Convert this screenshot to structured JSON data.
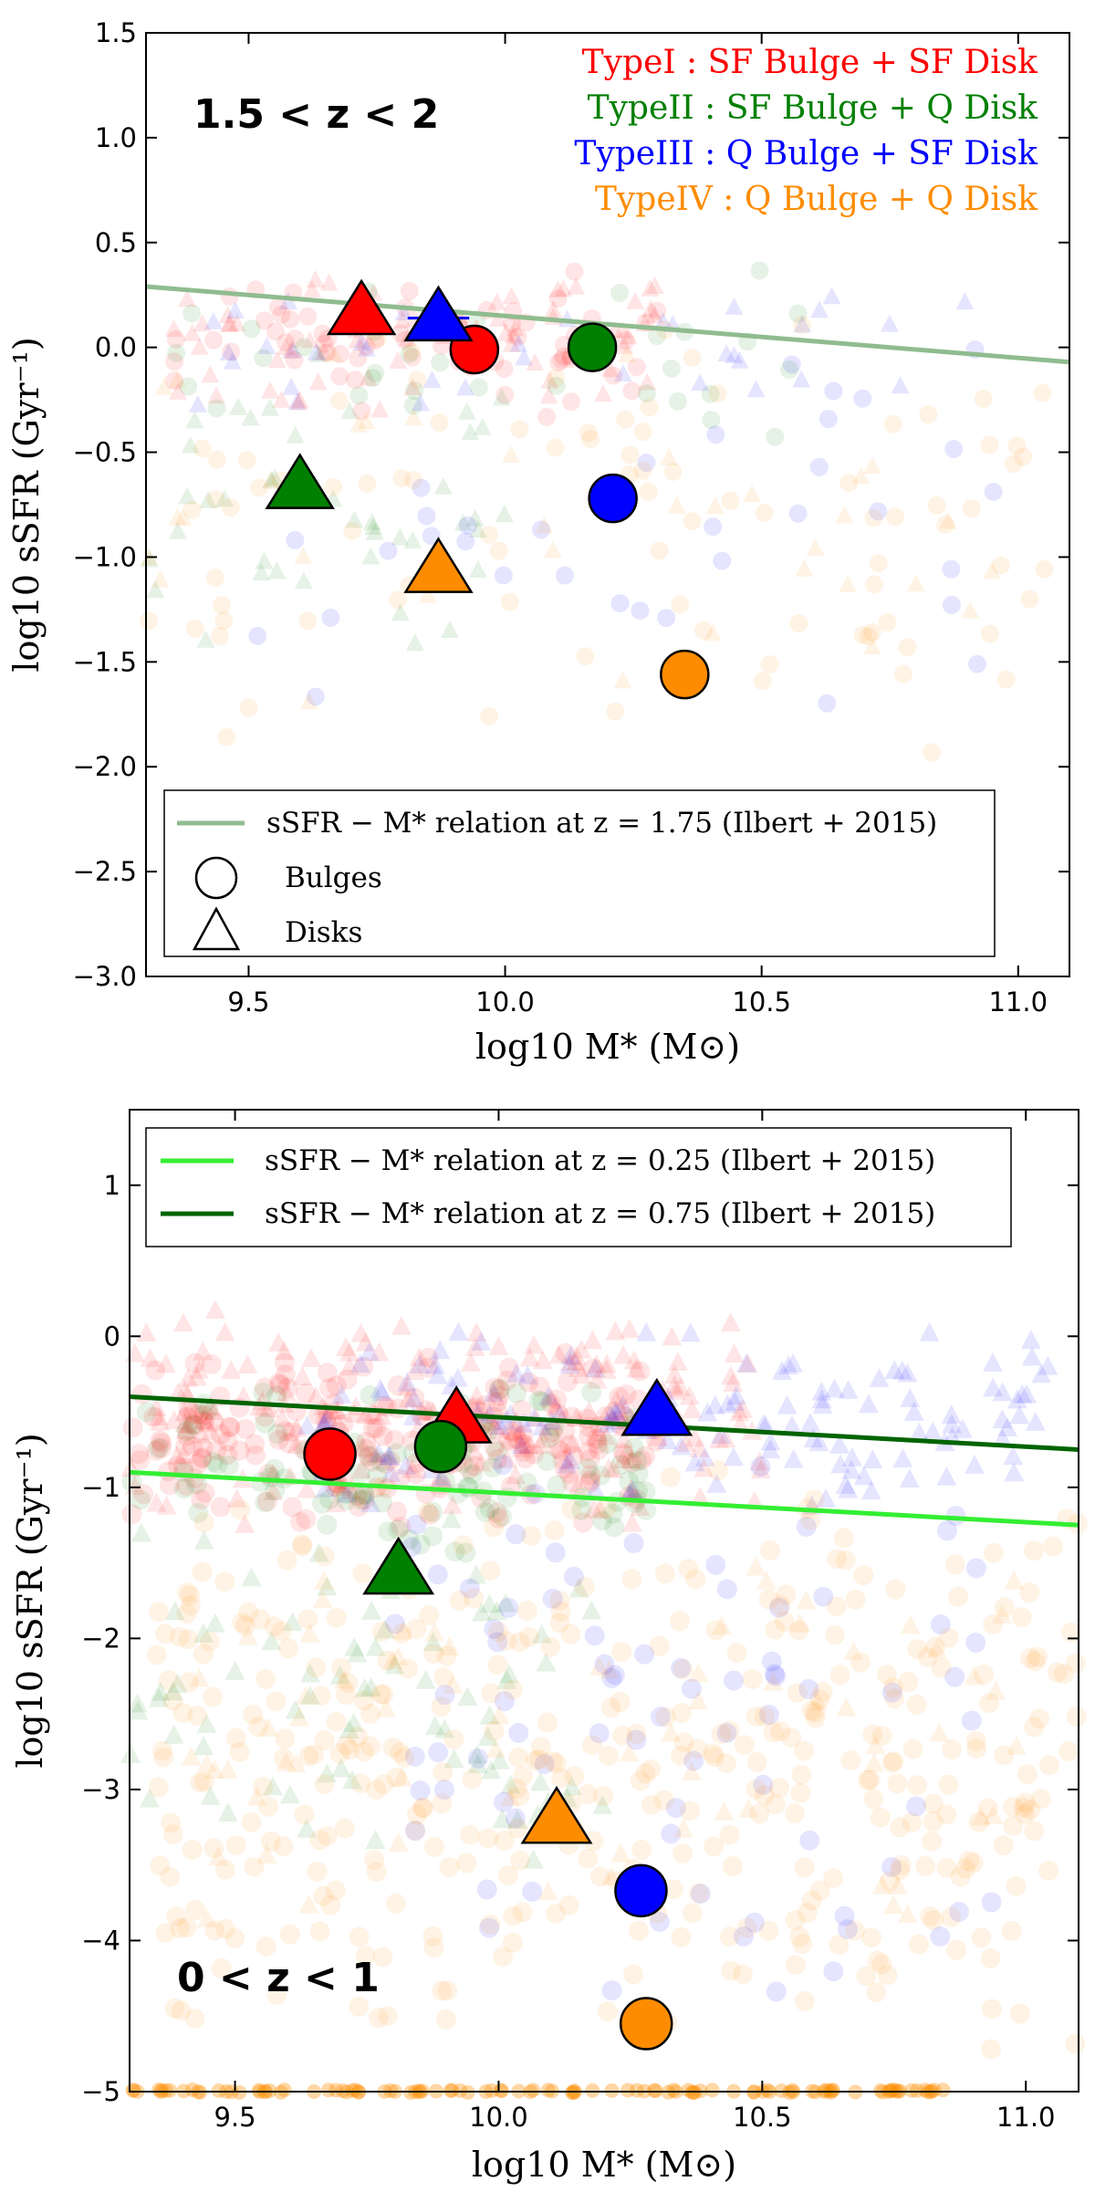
{
  "chart_data": [
    {
      "type": "scatter",
      "panel": "top",
      "redshift_label": "1.5 < z < 2",
      "xlabel": "log10 M* (M⊙)",
      "ylabel": "log10 sSFR (Gyr⁻¹)",
      "xlim": [
        9.3,
        11.1
      ],
      "ylim": [
        -3.0,
        1.5
      ],
      "xticks": [
        "9.5",
        "10.0",
        "10.5",
        "11.0"
      ],
      "yticks": [
        "−3.0",
        "−2.5",
        "−2.0",
        "−1.5",
        "−1.0",
        "−0.5",
        "0.0",
        "0.5",
        "1.0",
        "1.5"
      ],
      "type_legend": [
        {
          "text": "TypeI : SF Bulge + SF Disk",
          "color": "#ff0000"
        },
        {
          "text": "TypeII : SF Bulge + Q Disk",
          "color": "#008000"
        },
        {
          "text": "TypeIII : Q Bulge + SF Disk",
          "color": "#0000ff"
        },
        {
          "text": "TypeIV : Q Bulge + Q Disk",
          "color": "#ff8c00"
        }
      ],
      "marker_legend": {
        "line": "sSFR − M* relation at z = 1.75 (Ilbert + 2015)",
        "bulges": "Bulges",
        "disks": "Disks"
      },
      "relations": [
        {
          "label": "sSFR − M* relation at z = 1.75 (Ilbert + 2015)",
          "color": "#8fbc8f",
          "x": [
            9.3,
            11.1
          ],
          "y": [
            0.29,
            -0.07
          ]
        }
      ],
      "medians": [
        {
          "name": "TypeI bulge",
          "marker": "circle",
          "color": "#ff0000",
          "x": 9.94,
          "y": -0.01
        },
        {
          "name": "TypeI disk",
          "marker": "triangle",
          "color": "#ff0000",
          "x": 9.72,
          "y": 0.17
        },
        {
          "name": "TypeII bulge",
          "marker": "circle",
          "color": "#008000",
          "x": 10.17,
          "y": 0.0
        },
        {
          "name": "TypeII disk",
          "marker": "triangle",
          "color": "#008000",
          "x": 9.6,
          "y": -0.66,
          "xerr": 0.03
        },
        {
          "name": "TypeIII bulge",
          "marker": "circle",
          "color": "#0000ff",
          "x": 10.21,
          "y": -0.72,
          "xerr": 0.03
        },
        {
          "name": "TypeIII disk",
          "marker": "triangle",
          "color": "#0000ff",
          "x": 9.87,
          "y": 0.14,
          "xerr": 0.06
        },
        {
          "name": "TypeIV bulge",
          "marker": "circle",
          "color": "#ff8c00",
          "x": 10.35,
          "y": -1.56
        },
        {
          "name": "TypeIV disk",
          "marker": "triangle",
          "color": "#ff8c00",
          "x": 9.87,
          "y": -1.06,
          "xerr": 0.03
        }
      ],
      "background_populations": [
        {
          "color": "#ff0000",
          "marker": "circle",
          "n": 70,
          "xmin": 9.35,
          "xmax": 10.3,
          "ymin": -0.4,
          "ymax": 0.45
        },
        {
          "color": "#ff0000",
          "marker": "triangle",
          "n": 70,
          "xmin": 9.35,
          "xmax": 10.3,
          "ymin": -0.35,
          "ymax": 0.45
        },
        {
          "color": "#008000",
          "marker": "circle",
          "n": 35,
          "xmin": 9.35,
          "xmax": 10.6,
          "ymin": -0.5,
          "ymax": 0.4
        },
        {
          "color": "#008000",
          "marker": "triangle",
          "n": 45,
          "xmin": 9.3,
          "xmax": 10.0,
          "ymin": -1.7,
          "ymax": 0.0
        },
        {
          "color": "#0000ff",
          "marker": "circle",
          "n": 35,
          "xmin": 9.5,
          "xmax": 11.05,
          "ymin": -1.9,
          "ymax": 0.3
        },
        {
          "color": "#0000ff",
          "marker": "triangle",
          "n": 40,
          "xmin": 9.4,
          "xmax": 11.0,
          "ymin": -0.3,
          "ymax": 0.3
        },
        {
          "color": "#ff8c00",
          "marker": "circle",
          "n": 90,
          "xmin": 9.3,
          "xmax": 11.1,
          "ymin": -2.0,
          "ymax": 0.3
        },
        {
          "color": "#ff8c00",
          "marker": "triangle",
          "n": 35,
          "xmin": 9.3,
          "xmax": 11.0,
          "ymin": -1.8,
          "ymax": 0.3
        }
      ]
    },
    {
      "type": "scatter",
      "panel": "bottom",
      "redshift_label": "0 < z < 1",
      "xlabel": "log10 M* (M⊙)",
      "ylabel": "log10 sSFR (Gyr⁻¹)",
      "xlim": [
        9.3,
        11.1
      ],
      "ylim": [
        -5.0,
        1.5
      ],
      "xticks": [
        "9.5",
        "10.0",
        "10.5",
        "11.0"
      ],
      "yticks": [
        "−5",
        "−4",
        "−3",
        "−2",
        "−1",
        "0",
        "1"
      ],
      "marker_legend": {
        "lines": [
          {
            "text": "sSFR − M* relation at z = 0.25 (Ilbert + 2015)",
            "color": "#33ee33"
          },
          {
            "text": "sSFR − M* relation at z = 0.75 (Ilbert + 2015)",
            "color": "#006400"
          }
        ]
      },
      "relations": [
        {
          "label": "sSFR − M* relation at z = 0.25 (Ilbert + 2015)",
          "color": "#33ee33",
          "x": [
            9.3,
            11.1
          ],
          "y": [
            -0.9,
            -1.25
          ]
        },
        {
          "label": "sSFR − M* relation at z = 0.75 (Ilbert + 2015)",
          "color": "#006400",
          "x": [
            9.3,
            11.1
          ],
          "y": [
            -0.4,
            -0.75
          ]
        }
      ],
      "medians": [
        {
          "name": "TypeI bulge",
          "marker": "circle",
          "color": "#ff0000",
          "x": 9.68,
          "y": -0.78
        },
        {
          "name": "TypeI disk",
          "marker": "triangle",
          "color": "#ff0000",
          "x": 9.92,
          "y": -0.55
        },
        {
          "name": "TypeII bulge",
          "marker": "circle",
          "color": "#008000",
          "x": 9.89,
          "y": -0.73
        },
        {
          "name": "TypeII disk",
          "marker": "triangle",
          "color": "#008000",
          "x": 9.81,
          "y": -1.55
        },
        {
          "name": "TypeIII bulge",
          "marker": "circle",
          "color": "#0000ff",
          "x": 10.27,
          "y": -3.67
        },
        {
          "name": "TypeIII disk",
          "marker": "triangle",
          "color": "#0000ff",
          "x": 10.3,
          "y": -0.5
        },
        {
          "name": "TypeIV bulge",
          "marker": "circle",
          "color": "#ff8c00",
          "x": 10.28,
          "y": -4.55
        },
        {
          "name": "TypeIV disk",
          "marker": "triangle",
          "color": "#ff8c00",
          "x": 10.11,
          "y": -3.2
        }
      ],
      "background_populations": [
        {
          "color": "#ff0000",
          "marker": "circle",
          "n": 220,
          "xmin": 9.3,
          "xmax": 10.3,
          "ymin": -1.3,
          "ymax": -0.05
        },
        {
          "color": "#ff0000",
          "marker": "triangle",
          "n": 200,
          "xmin": 9.3,
          "xmax": 10.5,
          "ymin": -1.3,
          "ymax": 0.2
        },
        {
          "color": "#008000",
          "marker": "circle",
          "n": 110,
          "xmin": 9.3,
          "xmax": 10.3,
          "ymin": -1.5,
          "ymax": -0.3
        },
        {
          "color": "#008000",
          "marker": "triangle",
          "n": 80,
          "xmin": 9.3,
          "xmax": 10.2,
          "ymin": -3.7,
          "ymax": -1.0
        },
        {
          "color": "#0000ff",
          "marker": "circle",
          "n": 80,
          "xmin": 9.8,
          "xmax": 11.0,
          "ymin": -4.8,
          "ymax": -0.5
        },
        {
          "color": "#0000ff",
          "marker": "triangle",
          "n": 150,
          "xmin": 9.6,
          "xmax": 11.05,
          "ymin": -1.2,
          "ymax": 0.1
        },
        {
          "color": "#ff8c00",
          "marker": "circle",
          "n": 420,
          "xmin": 9.35,
          "xmax": 11.1,
          "ymin": -4.9,
          "ymax": -0.7
        },
        {
          "color": "#ff8c00",
          "marker": "triangle",
          "n": 70,
          "xmin": 9.4,
          "xmax": 11.0,
          "ymin": -4.2,
          "ymax": -1.0
        }
      ],
      "floor_band": {
        "color": "#ff8c00",
        "xmin": 9.3,
        "xmax": 10.85,
        "y": -5.0
      }
    }
  ]
}
